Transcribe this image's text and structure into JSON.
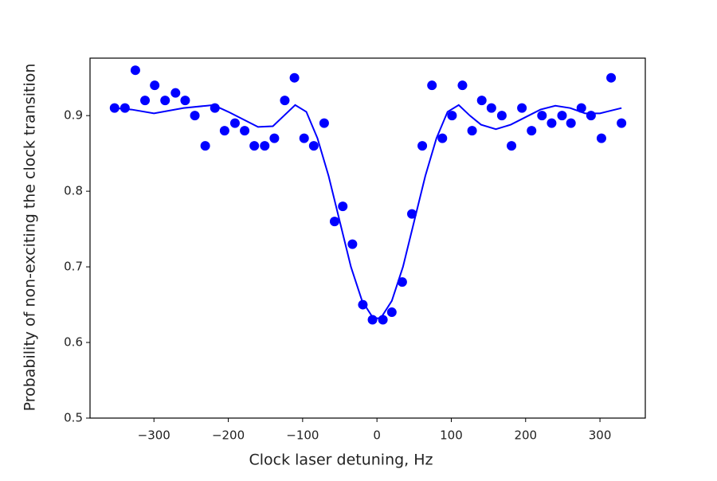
{
  "chart_data": {
    "type": "scatter",
    "x_label": "Clock laser detuning, Hz",
    "y_label": "Probability of non-exciting the clock transition",
    "x": [
      -353,
      -339,
      -325,
      -312,
      -299,
      -285,
      -271,
      -258,
      -245,
      -231,
      -218,
      -205,
      -191,
      -178,
      -165,
      -151,
      -138,
      -124,
      -111,
      -98,
      -85,
      -71,
      -57,
      -46,
      -33,
      -19,
      -6,
      8,
      20,
      34,
      47,
      61,
      74,
      88,
      101,
      115,
      128,
      141,
      154,
      168,
      181,
      195,
      208,
      222,
      235,
      249,
      261,
      275,
      288,
      302,
      315,
      329
    ],
    "values": [
      0.91,
      0.91,
      0.96,
      0.92,
      0.94,
      0.92,
      0.93,
      0.92,
      0.9,
      0.86,
      0.91,
      0.88,
      0.89,
      0.88,
      0.86,
      0.86,
      0.87,
      0.92,
      0.95,
      0.87,
      0.86,
      0.89,
      0.76,
      0.78,
      0.73,
      0.65,
      0.63,
      0.63,
      0.64,
      0.68,
      0.77,
      0.86,
      0.94,
      0.87,
      0.9,
      0.94,
      0.88,
      0.92,
      0.91,
      0.9,
      0.86,
      0.91,
      0.88,
      0.9,
      0.89,
      0.9,
      0.89,
      0.91,
      0.9,
      0.87,
      0.95,
      0.89
    ],
    "color": "#0000ff",
    "fit_x": [
      -353,
      -330,
      -300,
      -260,
      -230,
      -220,
      -200,
      -180,
      -160,
      -140,
      -125,
      -110,
      -95,
      -80,
      -65,
      -50,
      -35,
      -20,
      -5,
      5,
      20,
      35,
      50,
      65,
      80,
      95,
      110,
      125,
      140,
      160,
      180,
      200,
      220,
      240,
      260,
      280,
      300,
      329
    ],
    "fit_values": [
      0.91,
      0.908,
      0.903,
      0.91,
      0.913,
      0.914,
      0.905,
      0.895,
      0.885,
      0.886,
      0.9,
      0.914,
      0.905,
      0.87,
      0.82,
      0.76,
      0.7,
      0.655,
      0.632,
      0.632,
      0.655,
      0.7,
      0.76,
      0.82,
      0.87,
      0.905,
      0.914,
      0.9,
      0.888,
      0.882,
      0.888,
      0.898,
      0.908,
      0.913,
      0.91,
      0.903,
      0.903,
      0.91
    ],
    "fit_color": "#0000ff",
    "xlim": [
      -386,
      361
    ],
    "ylim": [
      0.5,
      0.976
    ],
    "xticks": [
      {
        "value": -300,
        "label": "−300"
      },
      {
        "value": -200,
        "label": "−200"
      },
      {
        "value": -100,
        "label": "−100"
      },
      0,
      100,
      200,
      300
    ],
    "yticks": [
      0.5,
      0.6,
      0.7,
      0.8,
      0.9
    ]
  }
}
